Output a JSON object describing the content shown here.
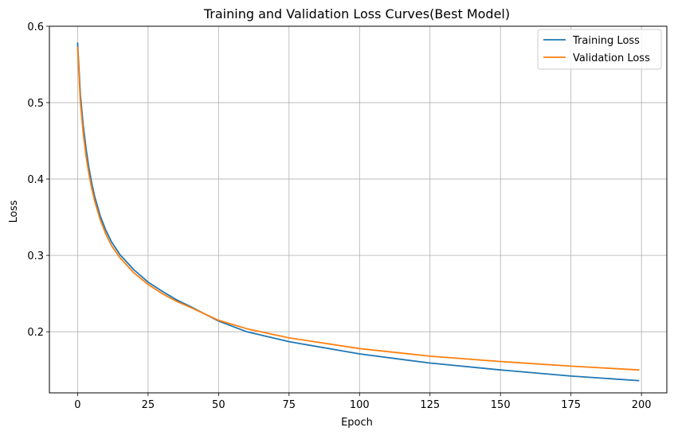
{
  "chart_data": {
    "type": "line",
    "title": "Training and Validation Loss Curves(Best Model)",
    "xlabel": "Epoch",
    "ylabel": "Loss",
    "xlim": [
      -10,
      209
    ],
    "ylim": [
      0.12,
      0.6
    ],
    "xticks": [
      0,
      25,
      50,
      75,
      100,
      125,
      150,
      175,
      200
    ],
    "yticks": [
      0.2,
      0.3,
      0.4,
      0.5,
      0.6
    ],
    "grid": true,
    "legend_position": "top-right",
    "series": [
      {
        "name": "Training Loss",
        "color": "#1f77b4",
        "x": [
          0,
          1,
          2,
          3,
          4,
          5,
          6,
          8,
          10,
          12,
          15,
          20,
          25,
          30,
          35,
          40,
          50,
          60,
          75,
          100,
          125,
          150,
          175,
          199
        ],
        "y": [
          0.578,
          0.51,
          0.47,
          0.44,
          0.415,
          0.395,
          0.378,
          0.352,
          0.333,
          0.318,
          0.301,
          0.281,
          0.265,
          0.253,
          0.242,
          0.233,
          0.214,
          0.2,
          0.187,
          0.171,
          0.159,
          0.15,
          0.142,
          0.136
        ]
      },
      {
        "name": "Validation Loss",
        "color": "#ff7f0e",
        "x": [
          0,
          1,
          2,
          3,
          4,
          5,
          6,
          8,
          10,
          12,
          15,
          20,
          25,
          30,
          35,
          40,
          50,
          60,
          75,
          100,
          125,
          150,
          175,
          199
        ],
        "y": [
          0.572,
          0.5,
          0.46,
          0.43,
          0.407,
          0.388,
          0.372,
          0.347,
          0.328,
          0.313,
          0.297,
          0.277,
          0.262,
          0.25,
          0.24,
          0.232,
          0.215,
          0.204,
          0.192,
          0.178,
          0.168,
          0.161,
          0.155,
          0.15
        ]
      }
    ]
  }
}
